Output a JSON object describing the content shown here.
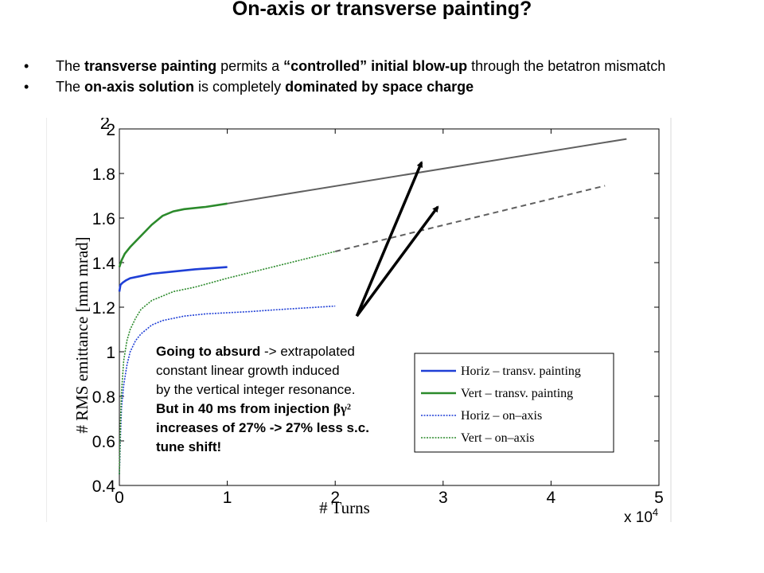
{
  "slide": {
    "title": "On-axis or transverse painting?",
    "bullets": [
      {
        "b1_pre": "The ",
        "b1_bold1": "transverse painting",
        "b1_mid": " permits a ",
        "b1_bold2": "“controlled” initial blow-up",
        "b1_post": " through the betatron mismatch"
      },
      {
        "b2_pre": "The ",
        "b2_bold1": "on-axis solution",
        "b2_mid": " is completely ",
        "b2_bold2": "dominated by space charge"
      }
    ],
    "annotation": {
      "l1_bold": "Going to absurd",
      "l1_rest": " -> extrapolated",
      "l2": "constant  linear growth induced",
      "l3": "by the vertical integer resonance.",
      "l4_bold": "But in 40 ms from injection ",
      "l4_symbol": "βγ²",
      "l5": "increases of 27%  -> 27% less s.c.",
      "l6": "tune shift!"
    }
  },
  "chart_data": {
    "type": "line",
    "xlabel": "# Turns",
    "ylabel": "# RMS emittance [mm mrad]",
    "x_multiplier_label": "x 10",
    "x_multiplier_exp": "4",
    "xlim": [
      0,
      5
    ],
    "ylim": [
      0.4,
      2
    ],
    "x_ticks": [
      "0",
      "1",
      "2",
      "3",
      "4",
      "5"
    ],
    "y_ticks": [
      "0.4",
      "0.6",
      "0.8",
      "1",
      "1.2",
      "1.4",
      "1.6",
      "1.8",
      "2"
    ],
    "y_top_partial_label": "2",
    "colors": {
      "horiz_transv": "#1f3fd6",
      "vert_transv": "#2b8a2b",
      "horiz_onaxis": "#1f3fd6",
      "vert_onaxis": "#2b8a2b",
      "extrap": "#606060",
      "arrow": "#000000"
    },
    "series": [
      {
        "name": "Horiz – transv. painting",
        "style": "solid",
        "x": [
          0,
          0.01,
          0.03,
          0.06,
          0.1,
          0.2,
          0.3,
          0.5,
          0.7,
          1.0
        ],
        "y": [
          1.27,
          1.3,
          1.31,
          1.32,
          1.33,
          1.34,
          1.35,
          1.36,
          1.37,
          1.38
        ]
      },
      {
        "name": "Vert – transv. painting",
        "style": "solid",
        "x": [
          0,
          0.02,
          0.05,
          0.1,
          0.2,
          0.3,
          0.4,
          0.5,
          0.6,
          0.8,
          1.0
        ],
        "y": [
          1.38,
          1.41,
          1.44,
          1.47,
          1.52,
          1.57,
          1.61,
          1.63,
          1.64,
          1.65,
          1.665
        ]
      },
      {
        "name": "Horiz – on–axis",
        "style": "dotted",
        "x": [
          0,
          0.01,
          0.02,
          0.04,
          0.07,
          0.1,
          0.15,
          0.2,
          0.3,
          0.4,
          0.6,
          0.8,
          1.0,
          1.2,
          1.5,
          2.0
        ],
        "y": [
          0.45,
          0.62,
          0.75,
          0.85,
          0.94,
          1.0,
          1.05,
          1.08,
          1.12,
          1.14,
          1.16,
          1.17,
          1.175,
          1.18,
          1.19,
          1.205
        ]
      },
      {
        "name": "Vert – on–axis",
        "style": "dotted",
        "x": [
          0,
          0.01,
          0.02,
          0.04,
          0.07,
          0.1,
          0.15,
          0.2,
          0.3,
          0.4,
          0.5,
          0.7,
          1.0,
          1.5,
          2.0
        ],
        "y": [
          0.45,
          0.68,
          0.82,
          0.96,
          1.05,
          1.1,
          1.15,
          1.19,
          1.23,
          1.25,
          1.27,
          1.29,
          1.33,
          1.39,
          1.45
        ]
      }
    ],
    "extrapolations": [
      {
        "style": "solid",
        "x": [
          1.0,
          4.7
        ],
        "y": [
          1.665,
          1.955
        ]
      },
      {
        "style": "dashed",
        "x": [
          2.0,
          4.5
        ],
        "y": [
          1.45,
          1.745
        ]
      }
    ],
    "arrows": [
      {
        "from": [
          2.2,
          1.16
        ],
        "to": [
          2.8,
          1.85
        ]
      },
      {
        "from": [
          2.2,
          1.16
        ],
        "to": [
          2.95,
          1.65
        ]
      }
    ],
    "legend_position": "right"
  }
}
